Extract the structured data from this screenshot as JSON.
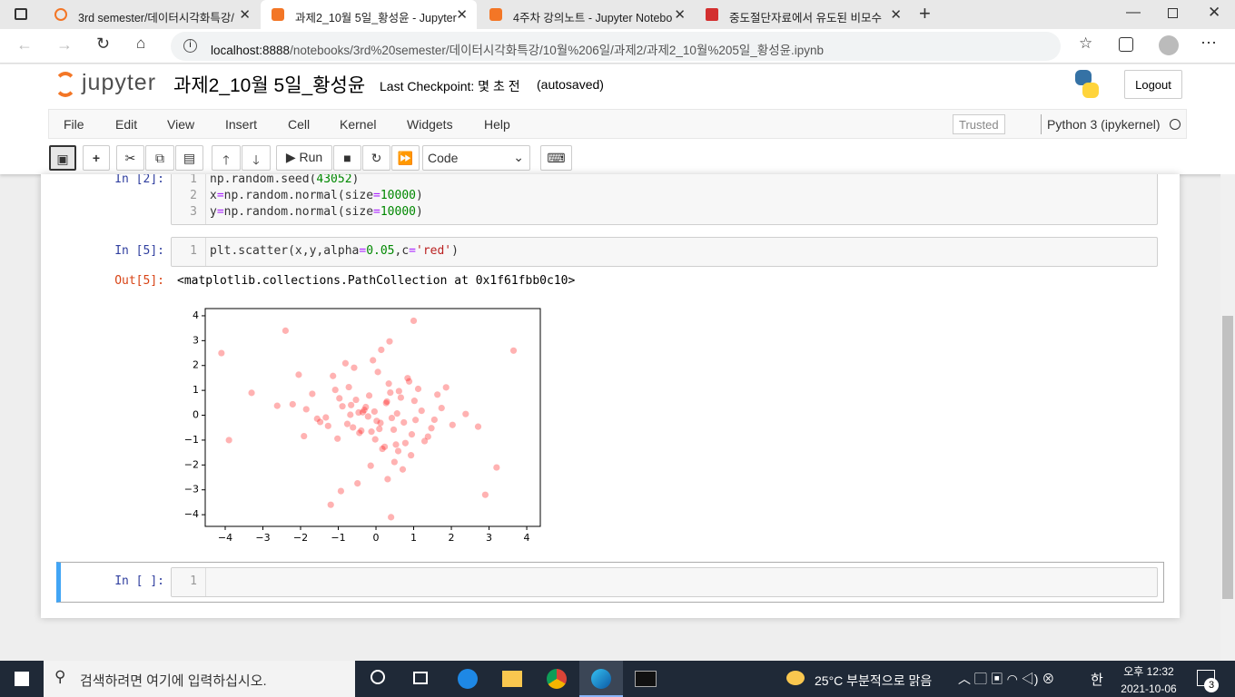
{
  "browser": {
    "tabs": [
      {
        "title": "3rd semester/데이터시각화특강/"
      },
      {
        "title": "과제2_10월 5일_황성윤 - Jupyter"
      },
      {
        "title": "4주차 강의노트 - Jupyter Notebo"
      },
      {
        "title": "중도절단자료에서 유도된 비모수"
      }
    ],
    "url_host": "localhost:8888",
    "url_path": "/notebooks/3rd%20semester/데이터시각화특강/10월%206일/과제2/과제2_10월%205일_황성윤.ipynb"
  },
  "header": {
    "logo": "jupyter",
    "notebook_name": "과제2_10월 5일_황성윤",
    "checkpoint": "Last Checkpoint: 몇 초 전",
    "autosaved": "(autosaved)",
    "logout": "Logout"
  },
  "menu": {
    "items": [
      "File",
      "Edit",
      "View",
      "Insert",
      "Cell",
      "Kernel",
      "Widgets",
      "Help"
    ],
    "trusted": "Trusted",
    "kernel": "Python 3 (ipykernel)"
  },
  "toolbar": {
    "run": "Run",
    "cell_type": "Code"
  },
  "cells": [
    {
      "prompt": "In [2]:",
      "lines": [
        {
          "number": 1,
          "segments": [
            {
              "text": "np.random.seed(",
              "color": "#333333"
            },
            {
              "text": "43052",
              "color": "#008800"
            },
            {
              "text": ")",
              "color": "#333333"
            }
          ]
        },
        {
          "number": 2,
          "segments": [
            {
              "text": "x",
              "color": "#333333"
            },
            {
              "text": "=",
              "color": "#aa22ff"
            },
            {
              "text": "np.random.normal(size",
              "color": "#333333"
            },
            {
              "text": "=",
              "color": "#aa22ff"
            },
            {
              "text": "10000",
              "color": "#008800"
            },
            {
              "text": ")",
              "color": "#333333"
            }
          ]
        },
        {
          "number": 3,
          "segments": [
            {
              "text": "y",
              "color": "#333333"
            },
            {
              "text": "=",
              "color": "#aa22ff"
            },
            {
              "text": "np.random.normal(size",
              "color": "#333333"
            },
            {
              "text": "=",
              "color": "#aa22ff"
            },
            {
              "text": "10000",
              "color": "#008800"
            },
            {
              "text": ")",
              "color": "#333333"
            }
          ]
        }
      ]
    },
    {
      "prompt": "In [5]:",
      "lines": [
        {
          "number": 1,
          "segments": [
            {
              "text": "plt.scatter(x,y,alpha",
              "color": "#333333"
            },
            {
              "text": "=",
              "color": "#aa22ff"
            },
            {
              "text": "0.05",
              "color": "#008800"
            },
            {
              "text": ",c",
              "color": "#333333"
            },
            {
              "text": "=",
              "color": "#aa22ff"
            },
            {
              "text": "'red'",
              "color": "#ba2121"
            },
            {
              "text": ")",
              "color": "#333333"
            }
          ]
        }
      ],
      "output_prompt": "Out[5]:",
      "output": "<matplotlib.collections.PathCollection at 0x1f61fbb0c10>"
    },
    {
      "prompt": "In [ ]:",
      "lines": [
        {
          "number": 1,
          "segments": []
        }
      ]
    }
  ],
  "taskbar": {
    "search": "검색하려면 여기에 입력하십시오.",
    "weather": "25°C 부분적으로 맑음",
    "time": "오후 12:32",
    "date": "2021-10-06",
    "ime": "한",
    "notifications": "3"
  },
  "chart_data": {
    "type": "scatter",
    "marker_opacity": 0.3,
    "xlim": [
      -4.53,
      4.36
    ],
    "ylim": [
      -4.47,
      4.29
    ],
    "xticks": [
      {
        "value": -4,
        "label": "−4"
      },
      {
        "value": -3,
        "label": "−3"
      },
      {
        "value": -2,
        "label": "−2"
      },
      {
        "value": -1,
        "label": "−1"
      },
      0,
      1,
      2,
      3,
      4
    ],
    "yticks": [
      {
        "value": -4,
        "label": "−4"
      },
      {
        "value": -3,
        "label": "−3"
      },
      {
        "value": -2,
        "label": "−2"
      },
      {
        "value": -1,
        "label": "−1"
      },
      0,
      1,
      2,
      3,
      4
    ],
    "x": [
      0.12,
      -0.53,
      1.21,
      -1.02,
      0.34,
      -0.21,
      0.78,
      -0.66,
      1.63,
      -1.48,
      0.05,
      0.47,
      -0.89,
      0.93,
      -0.35,
      0.61,
      -1.27,
      1.05,
      -0.14,
      0.29,
      -0.72,
      1.38,
      -1.85,
      0.84,
      -0.44,
      0.17,
      -0.97,
      0.56,
      2.03,
      -0.08,
      -1.56,
      0.71,
      0.38,
      -0.61,
      1.12,
      -0.27,
      0.95,
      -1.14,
      0.23,
      -0.39,
      1.74,
      -2.21,
      0.49,
      -0.81,
      0.02,
      1.29,
      -0.58,
      0.66,
      -1.33,
      0.31,
      -0.04,
      0.88,
      -0.76,
      1.47,
      -1.69,
      0.14,
      -0.49,
      2.38,
      -2.62,
      0.59,
      0.42,
      -0.31,
      -0.12,
      0.27,
      -0.68,
      0.74,
      1.86,
      -1.91,
      0.09,
      -0.18,
      1.02,
      -1.08,
      0.53,
      -0.46,
      2.71,
      -0.02,
      0.36,
      -0.93,
      1.55,
      -2.05,
      -4.1,
      3.65,
      -3.9,
      0.4,
      -2.4,
      3.2,
      -3.3,
      2.9,
      1.0,
      -1.2
    ],
    "series": [
      {
        "color": "#ff0000",
        "values": [
          -0.31,
          0.62,
          0.18,
          -0.94,
          1.27,
          -0.05,
          -1.12,
          0.41,
          0.83,
          -0.27,
          1.74,
          -0.58,
          0.36,
          -1.61,
          0.12,
          0.97,
          -0.43,
          -0.19,
          -2.03,
          0.55,
          1.13,
          -0.86,
          0.24,
          1.49,
          -0.71,
          -1.35,
          0.68,
          0.07,
          -0.39,
          2.21,
          -0.14,
          -2.18,
          0.91,
          -0.49,
          1.06,
          0.33,
          -0.77,
          1.58,
          -1.27,
          -0.62,
          0.29,
          0.44,
          -1.88,
          2.09,
          -0.23,
          -1.04,
          1.91,
          0.71,
          -0.09,
          -2.57,
          0.15,
          1.36,
          -0.35,
          -0.52,
          0.86,
          2.63,
          -2.74,
          0.05,
          0.38,
          -1.44,
          -0.11,
          0.21,
          -0.66,
          0.49,
          0.02,
          -0.29,
          1.12,
          -0.84,
          -0.55,
          0.79,
          0.58,
          1.02,
          -1.18,
          0.11,
          -0.46,
          -0.97,
          2.97,
          -3.05,
          -0.18,
          1.63,
          2.5,
          2.6,
          -1.0,
          -4.1,
          3.4,
          -2.1,
          0.9,
          -3.2,
          3.8,
          -3.6
        ]
      }
    ]
  }
}
